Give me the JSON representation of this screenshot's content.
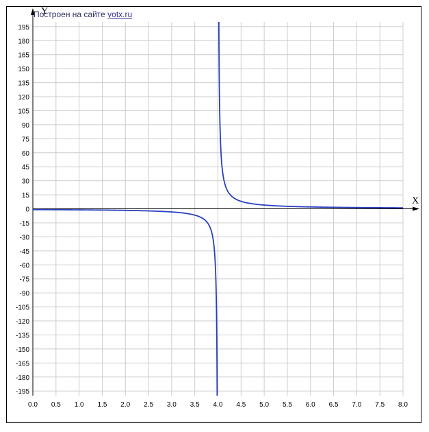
{
  "credit": {
    "text": "Построен на сайте",
    "link_text": "yotx.ru"
  },
  "chart_data": {
    "type": "line",
    "title": "",
    "xlabel": "X",
    "ylabel": "Y",
    "xlim": [
      0.0,
      8.0
    ],
    "ylim": [
      -200,
      200
    ],
    "grid": true,
    "x_ticks": [
      "0.0",
      "0.5",
      "1.0",
      "1.5",
      "2.0",
      "2.5",
      "3.0",
      "3.5",
      "4.0",
      "4.5",
      "5.0",
      "5.5",
      "6.0",
      "6.5",
      "7.0",
      "7.5",
      "8.0"
    ],
    "y_ticks": [
      "195",
      "180",
      "165",
      "150",
      "135",
      "120",
      "105",
      "90",
      "75",
      "60",
      "45",
      "30",
      "15",
      "0",
      "-15",
      "-30",
      "-45",
      "-60",
      "-75",
      "-90",
      "-105",
      "-120",
      "-135",
      "-150",
      "-165",
      "-180",
      "-195"
    ],
    "asymptote_x": 4.0,
    "series": [
      {
        "color": "#2a3fbf",
        "segments": [
          {
            "x": [
              0.0,
              0.5,
              1.0,
              1.5,
              2.0,
              2.5,
              3.0,
              3.25,
              3.5,
              3.6,
              3.7,
              3.8,
              3.85,
              3.9,
              3.93,
              3.95,
              3.97
            ],
            "y": [
              -0.25,
              -0.43,
              -0.67,
              -1.0,
              -1.5,
              -2.33,
              -4.0,
              -5.3,
              -8.0,
              -10.0,
              -13.3,
              -20.0,
              -26.7,
              -40.0,
              -57.1,
              -80.0,
              -133.3
            ]
          },
          {
            "x": [
              4.03,
              4.05,
              4.07,
              4.1,
              4.15,
              4.2,
              4.3,
              4.5,
              5.0,
              5.5,
              6.0,
              6.5,
              7.0,
              7.5,
              8.0
            ],
            "y": [
              133.3,
              80.0,
              57.1,
              40.0,
              26.7,
              20.0,
              13.3,
              8.0,
              4.0,
              2.67,
              2.0,
              1.6,
              1.33,
              1.14,
              1.0
            ]
          }
        ]
      }
    ]
  }
}
